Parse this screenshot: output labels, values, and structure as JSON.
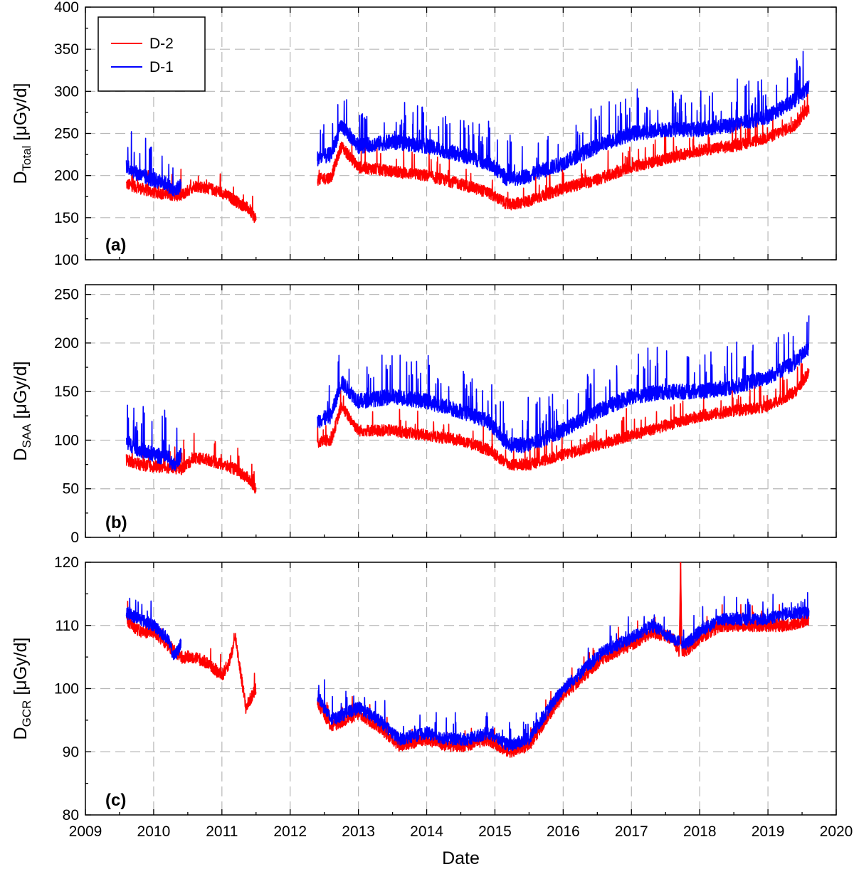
{
  "xlabel": "Date",
  "colors": {
    "D-2": "#ff0000",
    "D-1": "#0000ff"
  },
  "legend": {
    "placement": "top-left",
    "panel": 0,
    "entries": [
      "D-2",
      "D-1"
    ]
  },
  "chart_data": [
    {
      "type": "line",
      "panel_label": "(a)",
      "ylabel_main": "D",
      "ylabel_sub": "Total",
      "ylabel_unit": " [μGy/d]",
      "xlim": [
        2009,
        2020
      ],
      "x_ticks": [
        2009,
        2010,
        2011,
        2012,
        2013,
        2014,
        2015,
        2016,
        2017,
        2018,
        2019,
        2020
      ],
      "ylim": [
        100,
        400
      ],
      "y_ticks": [
        100,
        150,
        200,
        250,
        300,
        350,
        400
      ],
      "grid": true,
      "series": [
        {
          "name": "D-2",
          "color": "#ff0000",
          "noise": 7,
          "spike_prob": 0.03,
          "spike": 22,
          "x": [
            2009.6,
            2009.8,
            2010.0,
            2010.2,
            2010.4,
            2010.6,
            2010.8,
            2011.0,
            2011.2,
            2011.4,
            2011.5,
            null,
            2012.4,
            2012.6,
            2012.75,
            2013.0,
            2013.5,
            2014.0,
            2014.5,
            2014.9,
            2015.2,
            2015.5,
            2016.0,
            2016.5,
            2017.0,
            2017.5,
            2018.0,
            2018.5,
            2019.0,
            2019.4,
            2019.6
          ],
          "y": [
            190,
            185,
            180,
            178,
            176,
            188,
            185,
            180,
            170,
            160,
            148,
            null,
            195,
            198,
            235,
            210,
            205,
            200,
            190,
            180,
            165,
            170,
            185,
            195,
            210,
            220,
            230,
            235,
            245,
            260,
            280
          ]
        },
        {
          "name": "D-1",
          "color": "#0000ff",
          "noise": 9,
          "spike_prob": 0.05,
          "spike": 38,
          "x": [
            2009.6,
            2009.8,
            2010.0,
            2010.2,
            2010.3,
            2010.4,
            null,
            2012.4,
            2012.6,
            2012.75,
            2013.0,
            2013.5,
            2014.0,
            2014.5,
            2014.9,
            2015.2,
            2015.5,
            2016.0,
            2016.5,
            2017.0,
            2017.5,
            2018.0,
            2018.5,
            2019.0,
            2019.4,
            2019.6
          ],
          "y": [
            212,
            200,
            195,
            190,
            180,
            190,
            null,
            220,
            225,
            260,
            235,
            240,
            235,
            225,
            215,
            195,
            200,
            215,
            235,
            250,
            255,
            255,
            260,
            270,
            290,
            305
          ]
        }
      ]
    },
    {
      "type": "line",
      "panel_label": "(b)",
      "ylabel_main": "D",
      "ylabel_sub": "SAA",
      "ylabel_unit": " [μGy/d]",
      "xlim": [
        2009,
        2020
      ],
      "x_ticks": [
        2009,
        2010,
        2011,
        2012,
        2013,
        2014,
        2015,
        2016,
        2017,
        2018,
        2019,
        2020
      ],
      "ylim": [
        0,
        260
      ],
      "y_ticks": [
        0,
        50,
        100,
        150,
        200,
        250
      ],
      "grid": true,
      "series": [
        {
          "name": "D-2",
          "color": "#ff0000",
          "noise": 6,
          "spike_prob": 0.03,
          "spike": 20,
          "x": [
            2009.6,
            2009.8,
            2010.0,
            2010.2,
            2010.4,
            2010.6,
            2010.8,
            2011.0,
            2011.2,
            2011.4,
            2011.5,
            null,
            2012.4,
            2012.6,
            2012.75,
            2013.0,
            2013.5,
            2014.0,
            2014.5,
            2014.9,
            2015.2,
            2015.5,
            2016.0,
            2016.5,
            2017.0,
            2017.5,
            2018.0,
            2018.5,
            2019.0,
            2019.4,
            2019.6
          ],
          "y": [
            80,
            75,
            73,
            72,
            70,
            82,
            80,
            75,
            70,
            60,
            48,
            null,
            98,
            100,
            135,
            110,
            110,
            105,
            100,
            90,
            75,
            75,
            85,
            95,
            105,
            115,
            125,
            130,
            135,
            150,
            170
          ]
        },
        {
          "name": "D-1",
          "color": "#0000ff",
          "noise": 8,
          "spike_prob": 0.05,
          "spike": 35,
          "x": [
            2009.6,
            2009.8,
            2010.0,
            2010.2,
            2010.3,
            2010.4,
            null,
            2012.4,
            2012.6,
            2012.75,
            2013.0,
            2013.5,
            2014.0,
            2014.5,
            2014.9,
            2015.2,
            2015.5,
            2016.0,
            2016.5,
            2017.0,
            2017.5,
            2018.0,
            2018.5,
            2019.0,
            2019.4,
            2019.6
          ],
          "y": [
            98,
            90,
            85,
            82,
            75,
            85,
            null,
            120,
            125,
            160,
            140,
            145,
            140,
            130,
            120,
            95,
            95,
            110,
            130,
            145,
            150,
            150,
            155,
            165,
            180,
            195
          ]
        }
      ]
    },
    {
      "type": "line",
      "panel_label": "(c)",
      "ylabel_main": "D",
      "ylabel_sub": "GCR",
      "ylabel_unit": " [μGy/d]",
      "xlim": [
        2009,
        2020
      ],
      "x_ticks": [
        2009,
        2010,
        2011,
        2012,
        2013,
        2014,
        2015,
        2016,
        2017,
        2018,
        2019,
        2020
      ],
      "ylim": [
        80,
        120
      ],
      "y_ticks": [
        80,
        90,
        100,
        110,
        120
      ],
      "grid": true,
      "series": [
        {
          "name": "D-2",
          "color": "#ff0000",
          "noise": 1.0,
          "spike_prob": 0.02,
          "spike": 2.5,
          "x": [
            2009.6,
            2009.8,
            2010.0,
            2010.2,
            2010.4,
            2010.6,
            2010.8,
            2011.0,
            2011.1,
            2011.2,
            2011.35,
            2011.5,
            null,
            2012.4,
            2012.6,
            2012.8,
            2013.0,
            2013.3,
            2013.6,
            2014.0,
            2014.3,
            2014.6,
            2014.9,
            2015.2,
            2015.5,
            2015.8,
            2016.0,
            2016.3,
            2016.6,
            2017.0,
            2017.3,
            2017.6,
            2017.7,
            2017.72,
            2017.74,
            2017.8,
            2018.0,
            2018.3,
            2018.6,
            2019.0,
            2019.3,
            2019.6
          ],
          "y": [
            111,
            109,
            109,
            107,
            105,
            105,
            104,
            102,
            104,
            108,
            97,
            100,
            null,
            98,
            94,
            95,
            96,
            94,
            91,
            92,
            91,
            91,
            92,
            90,
            91,
            96,
            99,
            102,
            105,
            107,
            109,
            108,
            106,
            120,
            106,
            106,
            108,
            110,
            110,
            110,
            110,
            111
          ]
        },
        {
          "name": "D-1",
          "color": "#0000ff",
          "noise": 1.0,
          "spike_prob": 0.025,
          "spike": 3,
          "x": [
            2009.6,
            2009.8,
            2010.0,
            2010.2,
            2010.3,
            2010.4,
            null,
            2012.4,
            2012.6,
            2012.8,
            2013.0,
            2013.3,
            2013.6,
            2014.0,
            2014.3,
            2014.6,
            2014.9,
            2015.2,
            2015.5,
            2015.8,
            2016.0,
            2016.3,
            2016.6,
            2017.0,
            2017.3,
            2017.6,
            2017.8,
            2018.0,
            2018.3,
            2018.6,
            2019.0,
            2019.3,
            2019.6
          ],
          "y": [
            112,
            111,
            110,
            108,
            105,
            107,
            null,
            99,
            95,
            96,
            97,
            95,
            92,
            93,
            92,
            92,
            93,
            91,
            92,
            97,
            100,
            103,
            106,
            108,
            110,
            108,
            107,
            109,
            111,
            111,
            111,
            112,
            112
          ]
        }
      ]
    }
  ]
}
